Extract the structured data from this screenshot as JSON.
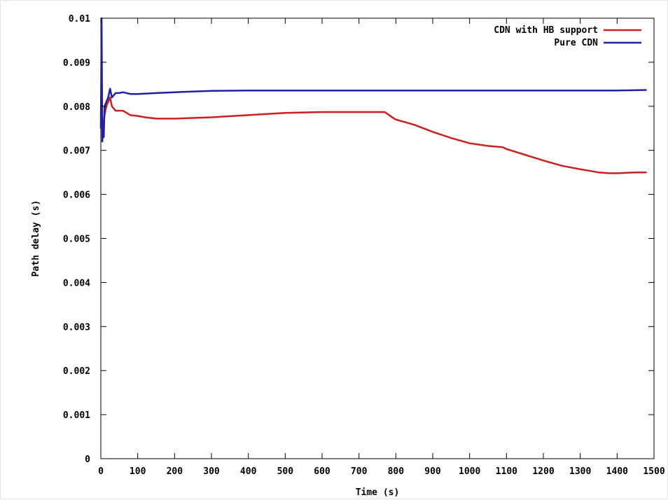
{
  "chart_data": {
    "type": "line",
    "xlabel": "Time (s)",
    "ylabel": "Path delay (s)",
    "xlim": [
      0,
      1500
    ],
    "ylim": [
      0,
      0.01
    ],
    "x_ticks": [
      "0",
      "100",
      "200",
      "300",
      "400",
      "500",
      "600",
      "700",
      "800",
      "900",
      "1000",
      "1100",
      "1200",
      "1300",
      "1400",
      "1500"
    ],
    "y_ticks": [
      "0",
      "0.001",
      "0.002",
      "0.003",
      "0.004",
      "0.005",
      "0.006",
      "0.007",
      "0.008",
      "0.009",
      "0.01"
    ],
    "legend_position": "top-right",
    "grid": false,
    "series": [
      {
        "name": "CDN with HB support",
        "color": "#cc1f1f",
        "x": [
          0,
          5,
          10,
          15,
          20,
          25,
          30,
          40,
          50,
          60,
          80,
          100,
          120,
          150,
          200,
          300,
          400,
          500,
          600,
          700,
          770,
          790,
          800,
          850,
          900,
          950,
          1000,
          1050,
          1090,
          1100,
          1150,
          1200,
          1250,
          1300,
          1350,
          1380,
          1400,
          1450,
          1480
        ],
        "y": [
          0.0078,
          0.0075,
          0.0078,
          0.008,
          0.0081,
          0.0082,
          0.008,
          0.0079,
          0.0079,
          0.0079,
          0.0078,
          0.00778,
          0.00775,
          0.00772,
          0.00772,
          0.00775,
          0.0078,
          0.00785,
          0.00787,
          0.00787,
          0.00787,
          0.00775,
          0.0077,
          0.00758,
          0.00742,
          0.00728,
          0.00716,
          0.0071,
          0.00707,
          0.00703,
          0.0069,
          0.00677,
          0.00665,
          0.00657,
          0.0065,
          0.00648,
          0.00648,
          0.0065,
          0.0065
        ]
      },
      {
        "name": "Pure CDN",
        "color": "#1f1fa8",
        "x": [
          0,
          2,
          4,
          6,
          8,
          10,
          15,
          20,
          25,
          30,
          40,
          50,
          60,
          80,
          100,
          150,
          200,
          300,
          400,
          500,
          600,
          700,
          800,
          900,
          1000,
          1100,
          1200,
          1300,
          1400,
          1480
        ],
        "y": [
          0.0075,
          0.01,
          0.0072,
          0.0074,
          0.0073,
          0.008,
          0.0081,
          0.0082,
          0.0084,
          0.0082,
          0.0083,
          0.0083,
          0.00832,
          0.00828,
          0.00828,
          0.0083,
          0.00832,
          0.00835,
          0.00836,
          0.00836,
          0.00836,
          0.00836,
          0.00836,
          0.00836,
          0.00836,
          0.00836,
          0.00836,
          0.00836,
          0.00836,
          0.00837
        ]
      }
    ]
  }
}
